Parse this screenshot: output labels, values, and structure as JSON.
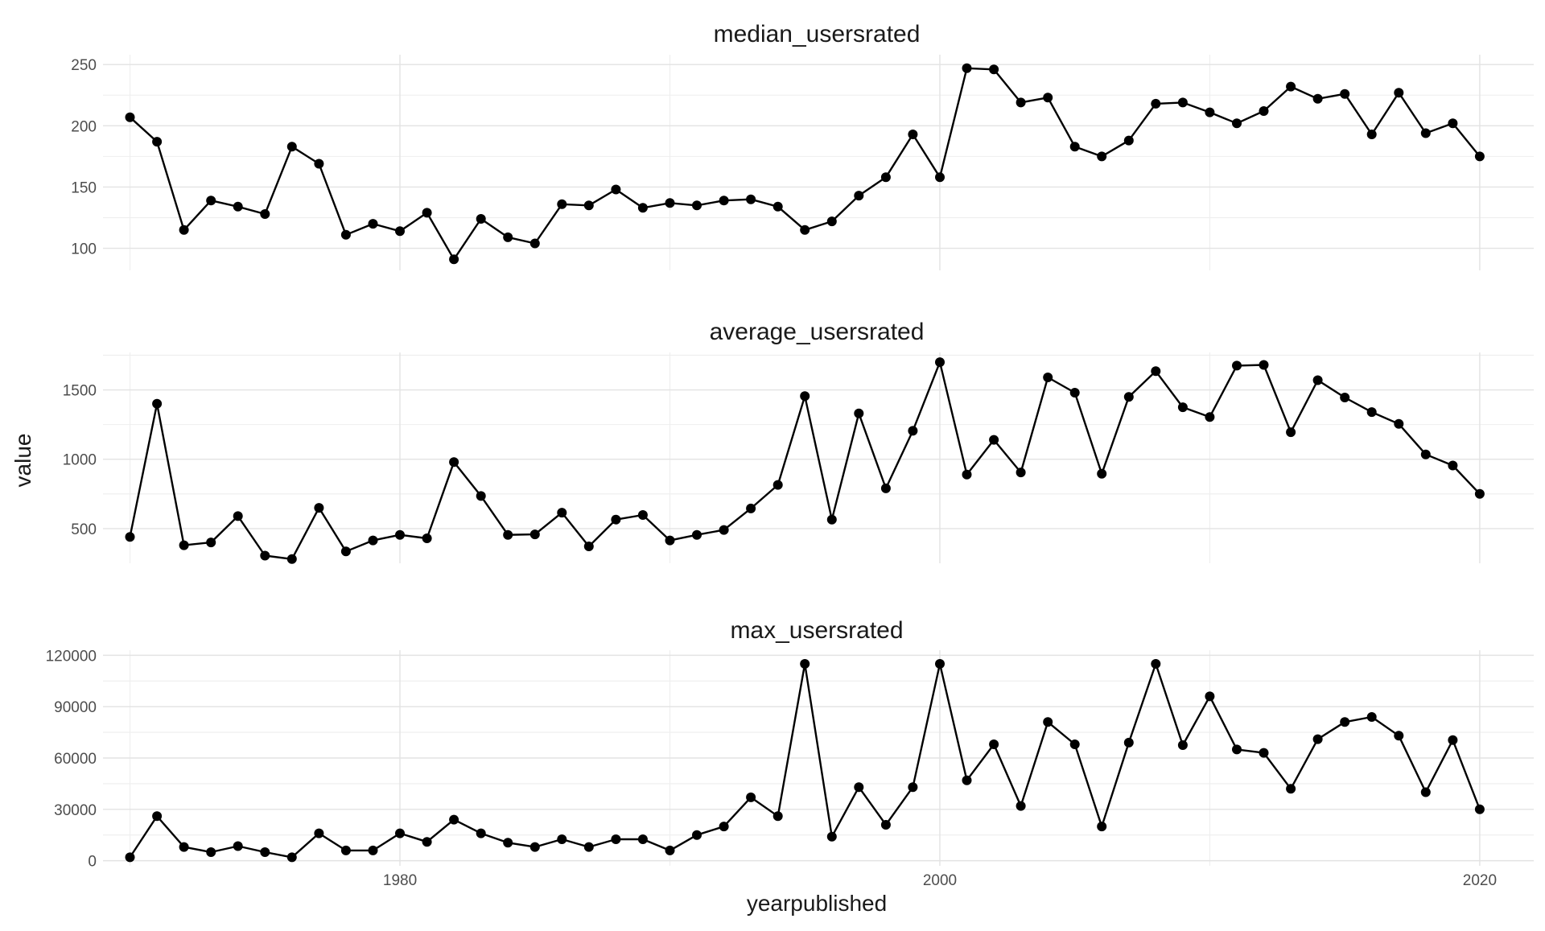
{
  "chart_data": {
    "type": "line",
    "xlabel": "yearpublished",
    "ylabel": "value",
    "facet_layout": "vertical, 3 panels, shared x axis",
    "grid": true,
    "legend": "none",
    "line_color": "#000000",
    "x_ticks": [
      1980,
      2000,
      2020
    ],
    "x_range": [
      1969,
      2022
    ],
    "panels": [
      {
        "title": "median_usersrated",
        "ylim": [
          82,
          258
        ],
        "y_ticks": [
          100,
          150,
          200,
          250
        ],
        "y_tick_labels": [
          "100",
          "150",
          "200",
          "250"
        ],
        "x": [
          1970,
          1971,
          1972,
          1973,
          1974,
          1975,
          1976,
          1977,
          1978,
          1979,
          1980,
          1981,
          1982,
          1983,
          1984,
          1985,
          1986,
          1987,
          1988,
          1989,
          1990,
          1991,
          1992,
          1993,
          1994,
          1995,
          1996,
          1997,
          1998,
          1999,
          2000,
          2001,
          2002,
          2003,
          2004,
          2005,
          2006,
          2007,
          2008,
          2009,
          2010,
          2011,
          2012,
          2013,
          2014,
          2015,
          2016,
          2017,
          2018,
          2019,
          2020
        ],
        "values": [
          207,
          187,
          115,
          139,
          134,
          128,
          183,
          169,
          111,
          120,
          114,
          129,
          91,
          124,
          109,
          104,
          136,
          135,
          148,
          133,
          137,
          135,
          139,
          140,
          134,
          115,
          122,
          143,
          158,
          193,
          158,
          247,
          246,
          219,
          223,
          183,
          175,
          188,
          218,
          219,
          211,
          202,
          212,
          232,
          222,
          226,
          193,
          227,
          194,
          202,
          175
        ]
      },
      {
        "title": "average_usersrated",
        "ylim": [
          250,
          1770
        ],
        "y_ticks": [
          500,
          1000,
          1500
        ],
        "y_tick_labels": [
          "500",
          "1000",
          "1500"
        ],
        "x": [
          1970,
          1971,
          1972,
          1973,
          1974,
          1975,
          1976,
          1977,
          1978,
          1979,
          1980,
          1981,
          1982,
          1983,
          1984,
          1985,
          1986,
          1987,
          1988,
          1989,
          1990,
          1991,
          1992,
          1993,
          1994,
          1995,
          1996,
          1997,
          1998,
          1999,
          2000,
          2001,
          2002,
          2003,
          2004,
          2005,
          2006,
          2007,
          2008,
          2009,
          2010,
          2011,
          2012,
          2013,
          2014,
          2015,
          2016,
          2017,
          2018,
          2019,
          2020
        ],
        "values": [
          440,
          1400,
          380,
          400,
          590,
          305,
          280,
          650,
          335,
          415,
          455,
          430,
          980,
          735,
          455,
          458,
          615,
          372,
          565,
          598,
          415,
          455,
          490,
          645,
          815,
          1455,
          565,
          1330,
          790,
          1205,
          1700,
          890,
          1140,
          905,
          1590,
          1480,
          895,
          1450,
          1635,
          1375,
          1305,
          1675,
          1680,
          1195,
          1570,
          1445,
          1340,
          1255,
          1035,
          955,
          750
        ]
      },
      {
        "title": "max_usersrated",
        "ylim": [
          -3000,
          123000
        ],
        "y_ticks": [
          0,
          30000,
          60000,
          90000,
          120000
        ],
        "y_tick_labels": [
          "0",
          "30000",
          "60000",
          "90000",
          "120000"
        ],
        "x": [
          1970,
          1971,
          1972,
          1973,
          1974,
          1975,
          1976,
          1977,
          1978,
          1979,
          1980,
          1981,
          1982,
          1983,
          1984,
          1985,
          1986,
          1987,
          1988,
          1989,
          1990,
          1991,
          1992,
          1993,
          1994,
          1995,
          1996,
          1997,
          1998,
          1999,
          2000,
          2001,
          2002,
          2003,
          2004,
          2005,
          2006,
          2007,
          2008,
          2009,
          2010,
          2011,
          2012,
          2013,
          2014,
          2015,
          2016,
          2017,
          2018,
          2019,
          2020
        ],
        "values": [
          2000,
          26000,
          8000,
          5000,
          8500,
          5000,
          2000,
          16000,
          6000,
          6000,
          16000,
          11000,
          24000,
          16000,
          10500,
          8000,
          12500,
          8000,
          12500,
          12500,
          6000,
          15000,
          20000,
          37000,
          26000,
          115000,
          14000,
          43000,
          21000,
          43000,
          115000,
          47000,
          68000,
          32000,
          81000,
          68000,
          20000,
          69000,
          115000,
          67500,
          96000,
          65000,
          63000,
          42000,
          71000,
          81000,
          84000,
          73000,
          40000,
          70500,
          30000
        ]
      }
    ]
  }
}
